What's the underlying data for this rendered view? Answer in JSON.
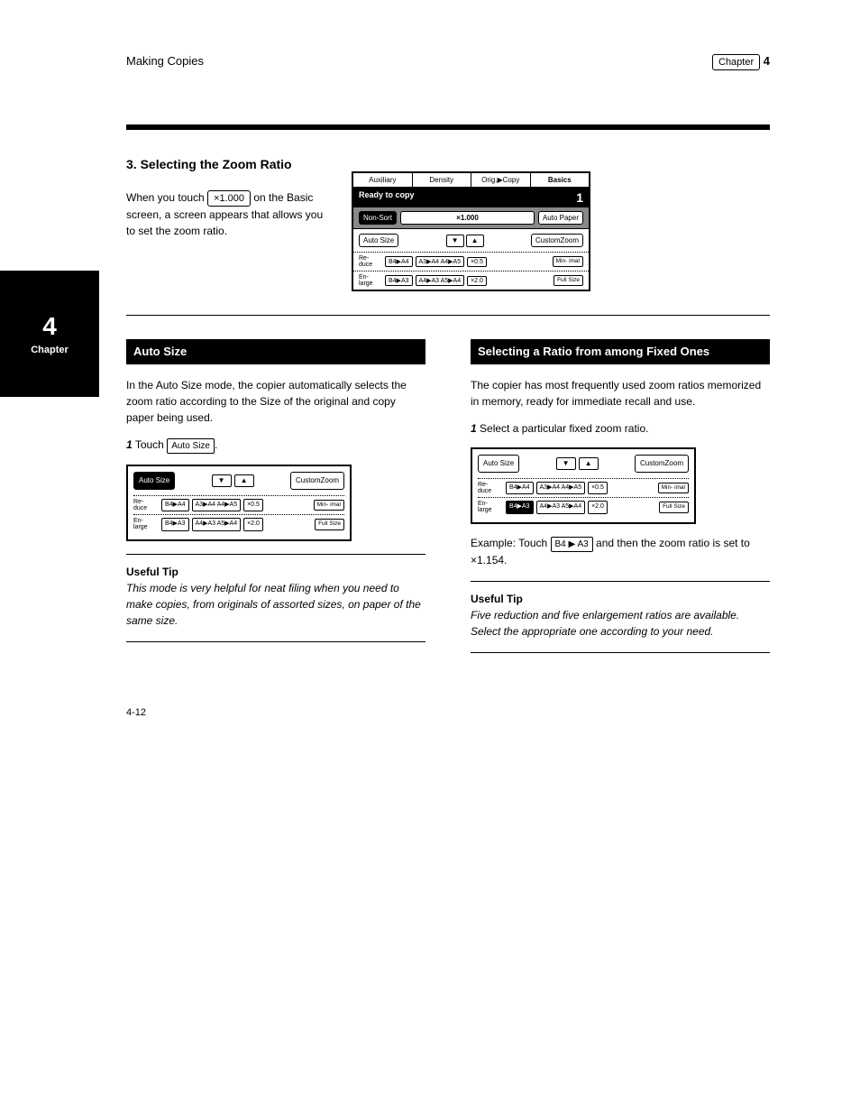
{
  "header": {
    "left": "Making Copies",
    "right_label": "Chapter",
    "right_value": "4"
  },
  "section_title": "3. Selecting the Zoom Ratio",
  "intro_prefix": "When you touch",
  "intro_key": "×1.000",
  "intro_suffix": "on the Basic screen, a screen appears that allows you to set the zoom ratio.",
  "chapter_tab": {
    "num": "4",
    "word": "Chapter"
  },
  "lcd": {
    "tabs": [
      "Auxiliary",
      "Density",
      "Orig.▶Copy",
      "Basics"
    ],
    "status_text": "Ready to copy",
    "status_count": "1",
    "row_buttons": {
      "nonsort": "Non-Sort",
      "zoom": "×1.000",
      "autopaper": "Auto Paper"
    },
    "setting": {
      "autosize": "Auto Size",
      "customzoom": "CustomZoom",
      "down": "▼",
      "up": "▲"
    },
    "reduce": {
      "label": "Re-\nduce",
      "b1": "B4▶A4",
      "b2": "A3▶A4\nA4▶A5",
      "b3": "×0.5",
      "mini": "Min-\nimal"
    },
    "enlarge": {
      "label": "En-\nlarge",
      "b1": "B4▶A3",
      "b2": "A4▶A3\nA5▶A4",
      "b3": "×2.0",
      "full": "Full\nSize"
    }
  },
  "auto_size": {
    "heading": "Auto Size",
    "body": "In the Auto Size mode, the copier automatically selects the zoom ratio according to the Size of the original and copy paper being used.",
    "step_num": "1",
    "step_text_before": "Touch",
    "step_key": "Auto Size",
    "step_text_after": ".",
    "panel": {
      "autosize_selected": true
    },
    "tip_label": "Useful Tip",
    "tip_text": "This mode is very helpful for neat filing when you need to make copies, from originals of assorted sizes, on paper of the same size."
  },
  "fixed_ratio": {
    "heading": "Selecting a Ratio from among Fixed Ones",
    "body": "The copier has most frequently used zoom ratios memorized in memory, ready for immediate recall and use.",
    "step_num": "1",
    "step_text": "Select a particular fixed zoom ratio.",
    "panel": {
      "enlarge_b1_selected": true
    },
    "example_before": "Example: Touch",
    "example_key": "B4 ▶ A3",
    "example_after": " and then the zoom ratio is set to ×1.154.",
    "tip_label": "Useful Tip",
    "tip_text": "Five reduction and five enlargement ratios are available. Select the appropriate one according to your need."
  },
  "page_number": "4-12"
}
